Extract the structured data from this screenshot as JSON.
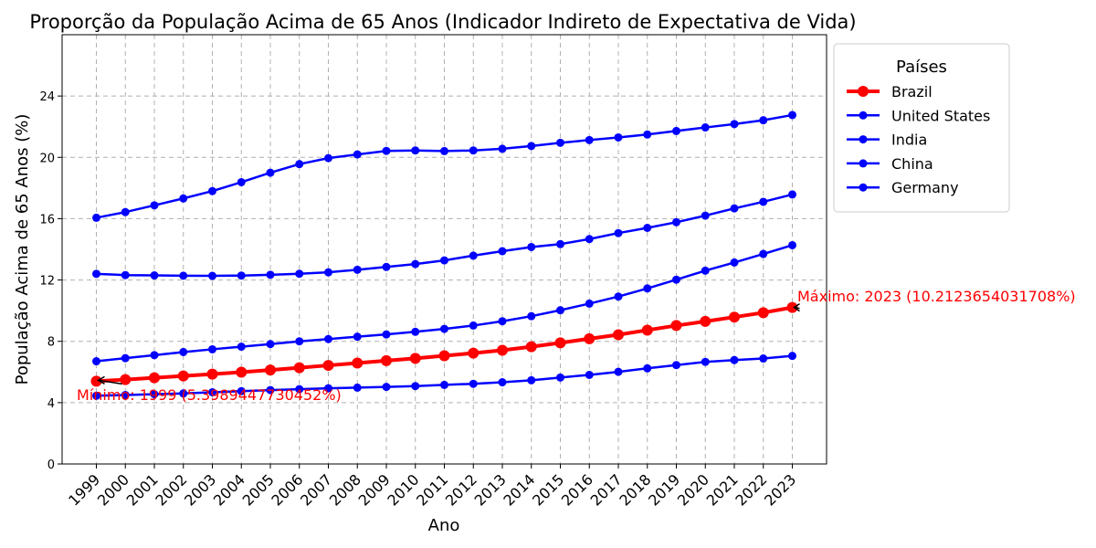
{
  "chart_data": {
    "type": "line",
    "title": "Proporção da População Acima de 65 Anos (Indicador Indireto de Expectativa de Vida)",
    "xlabel": "Ano",
    "ylabel": "População Acima de 65 Anos (%)",
    "x": [
      1999,
      2000,
      2001,
      2002,
      2003,
      2004,
      2005,
      2006,
      2007,
      2008,
      2009,
      2010,
      2011,
      2012,
      2013,
      2014,
      2015,
      2016,
      2017,
      2018,
      2019,
      2020,
      2021,
      2022,
      2023
    ],
    "x_tick_labels": [
      "1999",
      "2000",
      "2001",
      "2002",
      "2003",
      "2004",
      "2005",
      "2006",
      "2007",
      "2008",
      "2009",
      "2010",
      "2011",
      "2012",
      "2013",
      "2014",
      "2015",
      "2016",
      "2017",
      "2018",
      "2019",
      "2020",
      "2021",
      "2022",
      "2023"
    ],
    "ylim": [
      0,
      28
    ],
    "y_ticks": [
      0,
      4,
      8,
      12,
      16,
      20,
      24
    ],
    "y_tick_labels": [
      "0",
      "4",
      "8",
      "12",
      "16",
      "20",
      "24"
    ],
    "grid": true,
    "legend_title": "Países",
    "legend_placement": "outside-right-top",
    "series": [
      {
        "name": "Brazil",
        "color": "#ff0000",
        "highlight": true,
        "values": [
          5.4,
          5.5,
          5.62,
          5.74,
          5.86,
          5.99,
          6.13,
          6.28,
          6.43,
          6.58,
          6.74,
          6.89,
          7.06,
          7.23,
          7.42,
          7.65,
          7.9,
          8.17,
          8.43,
          8.73,
          9.03,
          9.3,
          9.58,
          9.87,
          10.21
        ]
      },
      {
        "name": "United States",
        "color": "#0000ff",
        "values": [
          12.4,
          12.32,
          12.3,
          12.28,
          12.27,
          12.29,
          12.34,
          12.41,
          12.5,
          12.67,
          12.85,
          13.04,
          13.28,
          13.59,
          13.88,
          14.15,
          14.34,
          14.67,
          15.06,
          15.4,
          15.77,
          16.2,
          16.67,
          17.1,
          17.58
        ]
      },
      {
        "name": "India",
        "color": "#0000ff",
        "values": [
          6.7,
          6.9,
          7.1,
          7.3,
          7.48,
          7.65,
          7.82,
          8.0,
          8.15,
          8.3,
          8.45,
          8.62,
          8.81,
          9.03,
          9.31,
          9.64,
          10.03,
          10.46,
          10.92,
          11.45,
          12.02,
          12.61,
          13.14,
          13.7,
          14.27
        ]
      },
      {
        "name": "China",
        "color": "#0000ff",
        "values": [
          16.06,
          16.43,
          16.87,
          17.32,
          17.8,
          18.38,
          19.0,
          19.56,
          19.95,
          20.19,
          20.42,
          20.45,
          20.41,
          20.45,
          20.56,
          20.74,
          20.95,
          21.13,
          21.3,
          21.49,
          21.72,
          21.95,
          22.17,
          22.42,
          22.76
        ]
      },
      {
        "name": "Germany",
        "color": "#0000ff",
        "values": [
          4.45,
          4.5,
          4.55,
          4.6,
          4.68,
          4.75,
          4.82,
          4.88,
          4.94,
          4.98,
          5.03,
          5.08,
          5.16,
          5.23,
          5.33,
          5.46,
          5.64,
          5.81,
          6.01,
          6.24,
          6.45,
          6.66,
          6.78,
          6.88,
          7.05
        ]
      }
    ],
    "annotations": [
      {
        "text": "Mínimo: 1999 (5.3989447730452%)",
        "x": 1999,
        "y": 5.4,
        "color": "#ff0000"
      },
      {
        "text": "Máximo: 2023 (10.2123654031708%)",
        "x": 2023,
        "y": 10.21,
        "color": "#ff0000"
      }
    ]
  }
}
